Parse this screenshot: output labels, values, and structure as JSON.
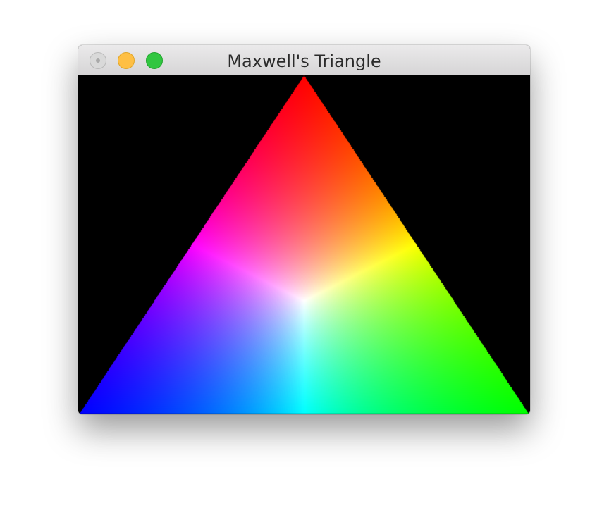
{
  "window": {
    "title": "Maxwell's Triangle",
    "controls": {
      "close_icon": "close-icon",
      "minimize_icon": "minimize-icon",
      "zoom_icon": "zoom-icon"
    }
  },
  "canvas": {
    "background": "#000000",
    "vertex_colors": {
      "top": "#ff0000",
      "bottom_right": "#00ff00",
      "bottom_left": "#0000ff"
    }
  }
}
